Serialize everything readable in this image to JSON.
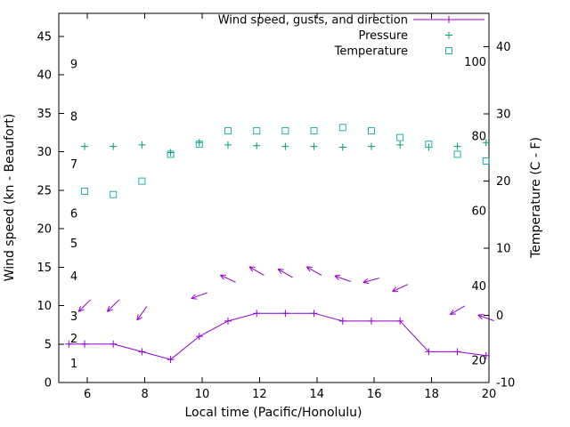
{
  "chart_data": {
    "type": "line",
    "title": "",
    "xlabel": "Local time (Pacific/Honolulu)",
    "ylabel": "Wind speed (kn - Beaufort)",
    "y2label": "Temperature (C - F)",
    "xlim": [
      5,
      20
    ],
    "ylim": [
      0,
      48
    ],
    "y2lim": [
      -10,
      45
    ],
    "xticks": [
      6,
      8,
      10,
      12,
      14,
      16,
      18,
      20
    ],
    "yticks": [
      0,
      5,
      10,
      15,
      20,
      25,
      30,
      35,
      40,
      45
    ],
    "y2ticks": [
      -10,
      0,
      10,
      20,
      30,
      40
    ],
    "grid": false,
    "legend_position": "top-right-inside",
    "colors": {
      "wind": "#9400d3",
      "pressure": "#009e73",
      "temperature": "#20b2aa",
      "axis": "#000000"
    },
    "legend": [
      {
        "label": "Wind speed, gusts, and direction",
        "sample": "line-plus",
        "series": "wind"
      },
      {
        "label": "Pressure",
        "sample": "plus",
        "series": "pressure"
      },
      {
        "label": "Temperature",
        "sample": "square",
        "series": "temperature"
      }
    ],
    "beaufort_labels": [
      {
        "text": "1",
        "kn": 2.5
      },
      {
        "text": "2",
        "kn": 5.7
      },
      {
        "text": "3",
        "kn": 8.6
      },
      {
        "text": "4",
        "kn": 13.8
      },
      {
        "text": "5",
        "kn": 18.1
      },
      {
        "text": "6",
        "kn": 22.0
      },
      {
        "text": "7",
        "kn": 28.4
      },
      {
        "text": "8",
        "kn": 34.6
      },
      {
        "text": "9",
        "kn": 41.4
      }
    ],
    "fahrenheit_labels": [
      {
        "text": "20",
        "c": -6.7
      },
      {
        "text": "40",
        "c": 4.4
      },
      {
        "text": "60",
        "c": 15.6
      },
      {
        "text": "80",
        "c": 26.7
      },
      {
        "text": "100",
        "c": 37.8
      }
    ],
    "series": {
      "wind_speed": {
        "name": "Wind speed",
        "axis": "y1",
        "x": [
          5.35,
          5.9,
          6.9,
          7.9,
          8.9,
          9.9,
          10.9,
          11.9,
          12.9,
          13.9,
          14.9,
          15.9,
          16.9,
          17.9,
          18.9,
          19.9
        ],
        "kn": [
          5,
          5,
          5,
          4,
          3,
          6,
          8,
          9,
          9,
          9,
          8,
          8,
          8,
          4,
          4,
          3.5
        ]
      },
      "wind_gust_arrows": {
        "name": "Gusts and direction",
        "axis": "y1",
        "points": [
          {
            "x": 5.9,
            "kn": 10.0,
            "dir_deg": 225
          },
          {
            "x": 6.9,
            "kn": 10.0,
            "dir_deg": 225
          },
          {
            "x": 7.9,
            "kn": 9.0,
            "dir_deg": 235
          },
          {
            "x": 9.9,
            "kn": 11.3,
            "dir_deg": 200
          },
          {
            "x": 10.9,
            "kn": 13.5,
            "dir_deg": 155
          },
          {
            "x": 11.9,
            "kn": 14.5,
            "dir_deg": 150
          },
          {
            "x": 12.9,
            "kn": 14.2,
            "dir_deg": 150
          },
          {
            "x": 13.9,
            "kn": 14.5,
            "dir_deg": 150
          },
          {
            "x": 14.9,
            "kn": 13.5,
            "dir_deg": 160
          },
          {
            "x": 15.9,
            "kn": 13.3,
            "dir_deg": 195
          },
          {
            "x": 16.9,
            "kn": 12.3,
            "dir_deg": 205
          },
          {
            "x": 18.9,
            "kn": 9.4,
            "dir_deg": 210
          },
          {
            "x": 19.9,
            "kn": 8.4,
            "dir_deg": 160
          }
        ]
      },
      "pressure": {
        "name": "Pressure",
        "axis": "y1",
        "x": [
          5.9,
          6.9,
          7.9,
          8.9,
          9.9,
          10.9,
          11.9,
          12.9,
          13.9,
          14.9,
          15.9,
          16.9,
          17.9,
          18.9,
          19.9
        ],
        "inhg": [
          30.7,
          30.7,
          30.9,
          29.9,
          31.2,
          30.9,
          30.8,
          30.7,
          30.7,
          30.6,
          30.7,
          30.9,
          30.6,
          30.7,
          31.2
        ]
      },
      "temperature": {
        "name": "Temperature",
        "axis": "y2",
        "x": [
          5.9,
          6.9,
          7.9,
          8.9,
          9.9,
          10.9,
          11.9,
          12.9,
          13.9,
          14.9,
          15.9,
          16.9,
          17.9,
          18.9,
          19.9
        ],
        "c": [
          18.5,
          18.0,
          20.0,
          24.0,
          25.5,
          27.5,
          27.5,
          27.5,
          27.5,
          28.0,
          27.5,
          26.5,
          25.5,
          24.0,
          23.0
        ]
      }
    }
  }
}
